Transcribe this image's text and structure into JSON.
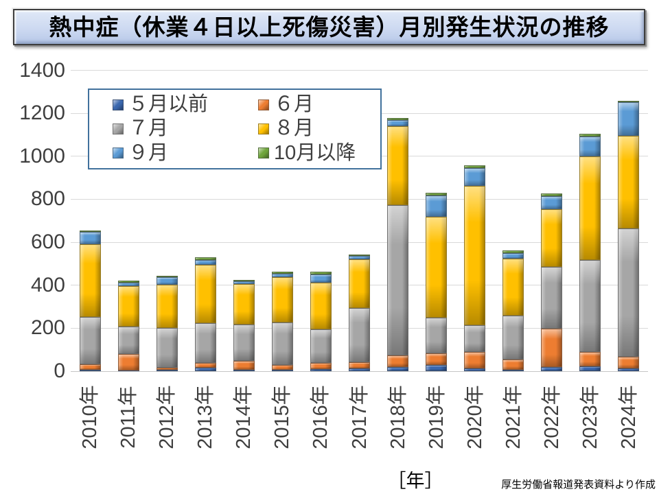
{
  "title": "熱中症（休業４日以上死傷災害）月別発生状況の推移",
  "x_axis_unit": "［年］",
  "source_note": "厚生労働省報道発表資料より作成",
  "y_axis": {
    "min": 0,
    "max": 1400,
    "step": 200,
    "tick_labels": [
      "0",
      "200",
      "400",
      "600",
      "800",
      "1000",
      "1200",
      "1400"
    ]
  },
  "colors": {
    "title_box_bg": "#cdd9f1",
    "grid": "#d9d9d9",
    "axis_text": "#3f3f3f",
    "legend_border": "#41719c",
    "may_earlier": "#3a67ae",
    "jun": "#ed7d31",
    "jul": "#a6a6a6",
    "aug": "#ffc000",
    "sep": "#5b9bd5",
    "oct_later": "#6fa53c"
  },
  "chart_data": {
    "type": "bar",
    "stacked": true,
    "title": "熱中症（休業４日以上死傷災害）月別発生状況の推移",
    "xlabel": "［年］",
    "ylabel": "",
    "ylim": [
      0,
      1400
    ],
    "ytick_step": 200,
    "grid": true,
    "legend_position": "top-left",
    "categories": [
      "2010年",
      "2011年",
      "2012年",
      "2013年",
      "2014年",
      "2015年",
      "2016年",
      "2017年",
      "2018年",
      "2019年",
      "2020年",
      "2021年",
      "2022年",
      "2023年",
      "2024年"
    ],
    "series": [
      {
        "name": "５月以前",
        "key": "may-earlier",
        "color": "#3a67ae",
        "values": [
          8,
          3,
          5,
          16,
          6,
          8,
          9,
          14,
          18,
          29,
          14,
          8,
          18,
          22,
          14
        ]
      },
      {
        "name": "６月",
        "key": "jun",
        "color": "#ed7d31",
        "values": [
          24,
          78,
          10,
          21,
          42,
          22,
          28,
          29,
          57,
          53,
          76,
          47,
          181,
          66,
          53
        ]
      },
      {
        "name": "７月",
        "key": "jul",
        "color": "#a6a6a6",
        "values": [
          219,
          128,
          187,
          187,
          170,
          198,
          157,
          250,
          697,
          168,
          123,
          205,
          286,
          428,
          597
        ]
      },
      {
        "name": "８月",
        "key": "aug",
        "color": "#ffc000",
        "values": [
          339,
          186,
          200,
          272,
          186,
          209,
          218,
          228,
          368,
          470,
          650,
          265,
          270,
          483,
          430
        ]
      },
      {
        "name": "９月",
        "key": "sep",
        "color": "#5b9bd5",
        "values": [
          58,
          18,
          35,
          22,
          15,
          16,
          38,
          17,
          30,
          98,
          82,
          25,
          60,
          92,
          157
        ]
      },
      {
        "name": "10月以降",
        "key": "oct-later",
        "color": "#6fa53c",
        "values": [
          8,
          9,
          3,
          12,
          4,
          11,
          12,
          6,
          8,
          11,
          14,
          11,
          12,
          15,
          6
        ]
      }
    ],
    "totals": [
      656,
      422,
      440,
      530,
      423,
      464,
      462,
      544,
      1178,
      829,
      959,
      561,
      827,
      1106,
      1257
    ]
  }
}
